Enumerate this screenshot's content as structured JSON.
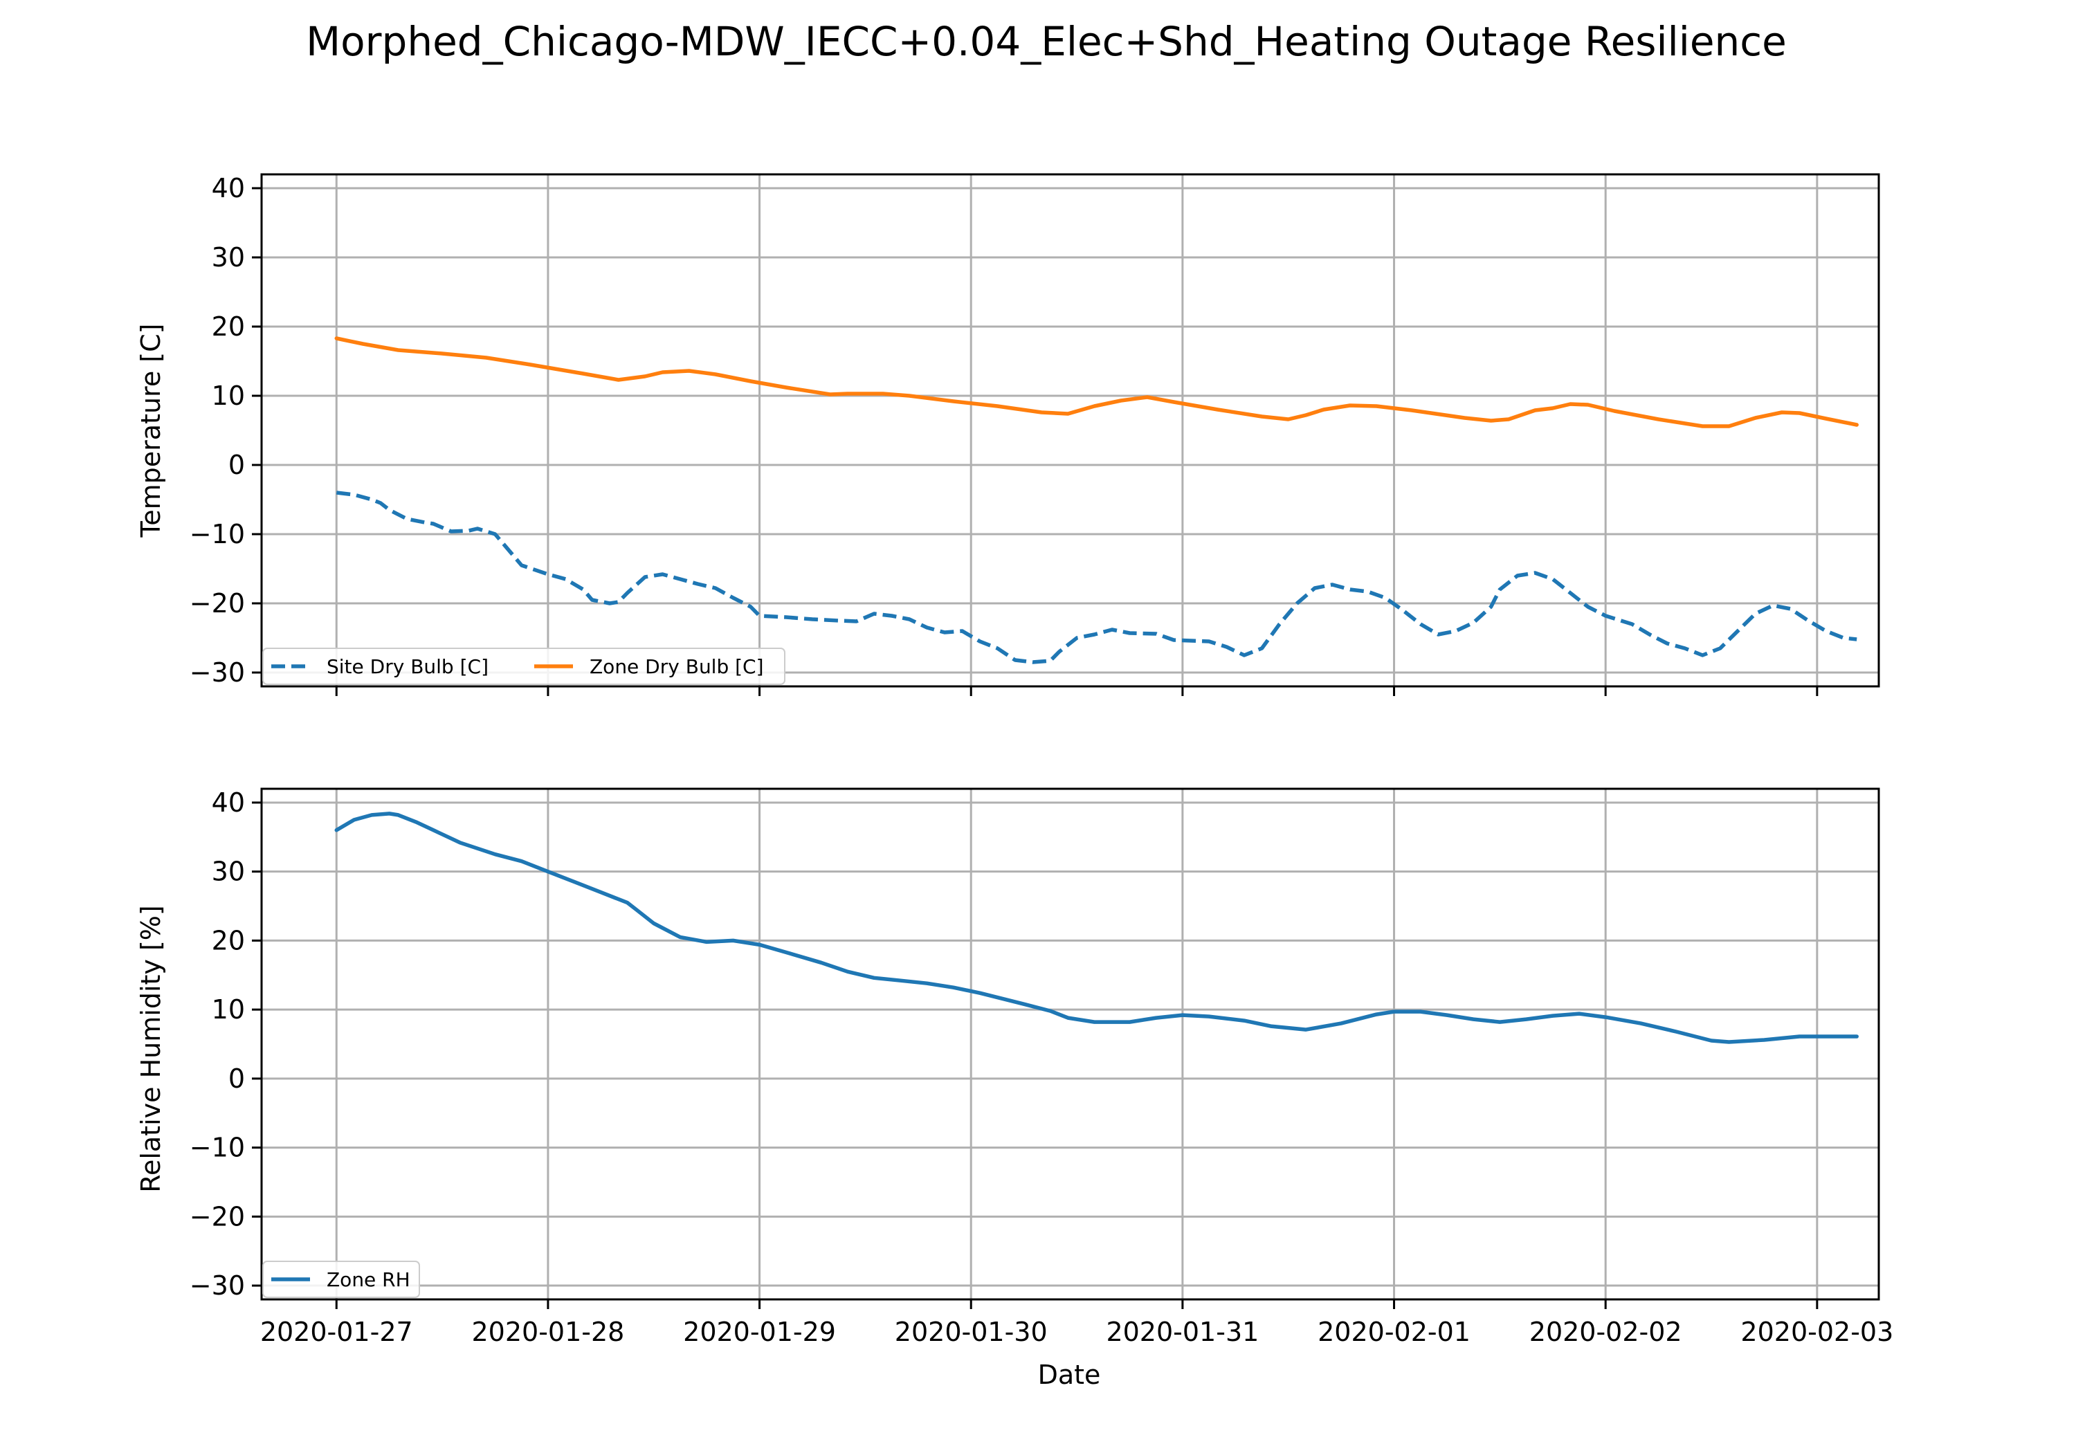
{
  "figure_title": "Morphed_Chicago-MDW_IECC+0.04_Elec+Shd_Heating Outage Resilience",
  "chart_data": [
    {
      "type": "line",
      "title": "",
      "xlabel": "",
      "ylabel": "Temperature [C]",
      "ylim": [
        -32,
        42
      ],
      "yticks": [
        -30,
        -20,
        -10,
        0,
        10,
        20,
        30,
        40
      ],
      "xlim": [
        "2020-01-26 15:30",
        "2020-02-03 07:00"
      ],
      "xticks": [
        "2020-01-27",
        "2020-01-28",
        "2020-01-29",
        "2020-01-30",
        "2020-01-31",
        "2020-02-01",
        "2020-02-02",
        "2020-02-03"
      ],
      "show_xtick_labels": false,
      "grid": true,
      "legend_position": "bottom-left",
      "legend_ncol": 2,
      "series": [
        {
          "name": "Site Dry Bulb [C]",
          "color": "#1f77b4",
          "style": "dashed",
          "points": [
            [
              "2020-01-27 00:00",
              -4
            ],
            [
              "2020-01-27 02:00",
              -4.3
            ],
            [
              "2020-01-27 04:00",
              -5
            ],
            [
              "2020-01-27 05:00",
              -5.5
            ],
            [
              "2020-01-27 06:00",
              -6.5
            ],
            [
              "2020-01-27 08:00",
              -7.8
            ],
            [
              "2020-01-27 10:00",
              -8.3
            ],
            [
              "2020-01-27 11:00",
              -8.5
            ],
            [
              "2020-01-27 13:00",
              -9.6
            ],
            [
              "2020-01-27 15:00",
              -9.5
            ],
            [
              "2020-01-27 16:00",
              -9.2
            ],
            [
              "2020-01-27 18:00",
              -10
            ],
            [
              "2020-01-27 20:00",
              -13
            ],
            [
              "2020-01-27 21:00",
              -14.5
            ],
            [
              "2020-01-28 00:00",
              -15.8
            ],
            [
              "2020-01-28 02:00",
              -16.5
            ],
            [
              "2020-01-28 04:00",
              -18
            ],
            [
              "2020-01-28 05:00",
              -19.5
            ],
            [
              "2020-01-28 07:00",
              -20
            ],
            [
              "2020-01-28 08:00",
              -19.8
            ],
            [
              "2020-01-28 09:00",
              -18.5
            ],
            [
              "2020-01-28 11:00",
              -16.2
            ],
            [
              "2020-01-28 13:00",
              -15.8
            ],
            [
              "2020-01-28 15:00",
              -16.5
            ],
            [
              "2020-01-28 17:00",
              -17.2
            ],
            [
              "2020-01-28 19:00",
              -17.8
            ],
            [
              "2020-01-28 21:00",
              -19.2
            ],
            [
              "2020-01-28 23:00",
              -20.5
            ],
            [
              "2020-01-29 00:00",
              -21.8
            ],
            [
              "2020-01-29 03:00",
              -22
            ],
            [
              "2020-01-29 06:00",
              -22.3
            ],
            [
              "2020-01-29 09:00",
              -22.5
            ],
            [
              "2020-01-29 11:00",
              -22.6
            ],
            [
              "2020-01-29 13:00",
              -21.5
            ],
            [
              "2020-01-29 15:00",
              -21.8
            ],
            [
              "2020-01-29 17:00",
              -22.3
            ],
            [
              "2020-01-29 19:00",
              -23.5
            ],
            [
              "2020-01-29 21:00",
              -24.2
            ],
            [
              "2020-01-29 23:00",
              -24
            ],
            [
              "2020-01-30 01:00",
              -25.5
            ],
            [
              "2020-01-30 03:00",
              -26.5
            ],
            [
              "2020-01-30 05:00",
              -28.2
            ],
            [
              "2020-01-30 07:00",
              -28.5
            ],
            [
              "2020-01-30 09:00",
              -28.3
            ],
            [
              "2020-01-30 10:00",
              -27
            ],
            [
              "2020-01-30 12:00",
              -25
            ],
            [
              "2020-01-30 14:00",
              -24.5
            ],
            [
              "2020-01-30 16:00",
              -23.8
            ],
            [
              "2020-01-30 18:00",
              -24.3
            ],
            [
              "2020-01-30 21:00",
              -24.4
            ],
            [
              "2020-01-30 23:00",
              -25.3
            ],
            [
              "2020-01-31 03:00",
              -25.5
            ],
            [
              "2020-01-31 05:00",
              -26.3
            ],
            [
              "2020-01-31 07:00",
              -27.5
            ],
            [
              "2020-01-31 09:00",
              -26.5
            ],
            [
              "2020-01-31 11:00",
              -23
            ],
            [
              "2020-01-31 13:00",
              -20
            ],
            [
              "2020-01-31 15:00",
              -17.8
            ],
            [
              "2020-01-31 17:00",
              -17.3
            ],
            [
              "2020-01-31 19:00",
              -18
            ],
            [
              "2020-01-31 21:00",
              -18.3
            ],
            [
              "2020-01-31 23:00",
              -19.2
            ],
            [
              "2020-02-01 01:00",
              -21
            ],
            [
              "2020-02-01 03:00",
              -23
            ],
            [
              "2020-02-01 05:00",
              -24.5
            ],
            [
              "2020-02-01 07:00",
              -24
            ],
            [
              "2020-02-01 09:00",
              -22.8
            ],
            [
              "2020-02-01 11:00",
              -20.5
            ],
            [
              "2020-02-01 12:00",
              -18
            ],
            [
              "2020-02-01 14:00",
              -16
            ],
            [
              "2020-02-01 16:00",
              -15.6
            ],
            [
              "2020-02-01 18:00",
              -16.5
            ],
            [
              "2020-02-01 20:00",
              -18.5
            ],
            [
              "2020-02-01 22:00",
              -20.5
            ],
            [
              "2020-02-02 00:00",
              -21.8
            ],
            [
              "2020-02-02 03:00",
              -23
            ],
            [
              "2020-02-02 05:00",
              -24.5
            ],
            [
              "2020-02-02 07:00",
              -25.8
            ],
            [
              "2020-02-02 09:00",
              -26.5
            ],
            [
              "2020-02-02 11:00",
              -27.5
            ],
            [
              "2020-02-02 13:00",
              -26.5
            ],
            [
              "2020-02-02 15:00",
              -24
            ],
            [
              "2020-02-02 17:00",
              -21.5
            ],
            [
              "2020-02-02 19:00",
              -20.3
            ],
            [
              "2020-02-02 21:00",
              -20.8
            ],
            [
              "2020-02-02 23:00",
              -22.5
            ],
            [
              "2020-02-03 01:00",
              -24
            ],
            [
              "2020-02-03 03:00",
              -25
            ],
            [
              "2020-02-03 04:30",
              -25.2
            ]
          ]
        },
        {
          "name": "Zone Dry Bulb [C]",
          "color": "#ff7f0e",
          "style": "solid",
          "points": [
            [
              "2020-01-27 00:00",
              18.3
            ],
            [
              "2020-01-27 03:00",
              17.5
            ],
            [
              "2020-01-27 07:00",
              16.6
            ],
            [
              "2020-01-27 12:00",
              16.1
            ],
            [
              "2020-01-27 17:00",
              15.5
            ],
            [
              "2020-01-27 22:00",
              14.5
            ],
            [
              "2020-01-28 04:00",
              13.2
            ],
            [
              "2020-01-28 08:00",
              12.3
            ],
            [
              "2020-01-28 11:00",
              12.8
            ],
            [
              "2020-01-28 13:00",
              13.4
            ],
            [
              "2020-01-28 16:00",
              13.6
            ],
            [
              "2020-01-28 19:00",
              13.1
            ],
            [
              "2020-01-28 23:00",
              12.1
            ],
            [
              "2020-01-29 03:00",
              11.2
            ],
            [
              "2020-01-29 08:00",
              10.2
            ],
            [
              "2020-01-29 10:00",
              10.3
            ],
            [
              "2020-01-29 14:00",
              10.3
            ],
            [
              "2020-01-29 17:00",
              10
            ],
            [
              "2020-01-29 22:00",
              9.2
            ],
            [
              "2020-01-30 03:00",
              8.5
            ],
            [
              "2020-01-30 08:00",
              7.6
            ],
            [
              "2020-01-30 11:00",
              7.4
            ],
            [
              "2020-01-30 14:00",
              8.5
            ],
            [
              "2020-01-30 17:00",
              9.3
            ],
            [
              "2020-01-30 20:00",
              9.8
            ],
            [
              "2020-01-30 23:00",
              9.1
            ],
            [
              "2020-01-31 04:00",
              8
            ],
            [
              "2020-01-31 09:00",
              7
            ],
            [
              "2020-01-31 12:00",
              6.6
            ],
            [
              "2020-01-31 14:00",
              7.2
            ],
            [
              "2020-01-31 16:00",
              8
            ],
            [
              "2020-01-31 19:00",
              8.6
            ],
            [
              "2020-01-31 22:00",
              8.5
            ],
            [
              "2020-02-01 02:00",
              7.9
            ],
            [
              "2020-02-01 08:00",
              6.8
            ],
            [
              "2020-02-01 11:00",
              6.4
            ],
            [
              "2020-02-01 13:00",
              6.6
            ],
            [
              "2020-02-01 16:00",
              7.9
            ],
            [
              "2020-02-01 18:00",
              8.2
            ],
            [
              "2020-02-01 20:00",
              8.8
            ],
            [
              "2020-02-01 22:00",
              8.7
            ],
            [
              "2020-02-02 01:00",
              7.8
            ],
            [
              "2020-02-02 06:00",
              6.6
            ],
            [
              "2020-02-02 11:00",
              5.6
            ],
            [
              "2020-02-02 14:00",
              5.6
            ],
            [
              "2020-02-02 17:00",
              6.8
            ],
            [
              "2020-02-02 20:00",
              7.6
            ],
            [
              "2020-02-02 22:00",
              7.5
            ],
            [
              "2020-02-03 01:00",
              6.7
            ],
            [
              "2020-02-03 04:30",
              5.8
            ]
          ]
        }
      ]
    },
    {
      "type": "line",
      "title": "",
      "xlabel": "Date",
      "ylabel": "Relative Humidity [%]",
      "ylim": [
        -32,
        42
      ],
      "yticks": [
        -30,
        -20,
        -10,
        0,
        10,
        20,
        30,
        40
      ],
      "xlim": [
        "2020-01-26 15:30",
        "2020-02-03 07:00"
      ],
      "xticks": [
        "2020-01-27",
        "2020-01-28",
        "2020-01-29",
        "2020-01-30",
        "2020-01-31",
        "2020-02-01",
        "2020-02-02",
        "2020-02-03"
      ],
      "show_xtick_labels": true,
      "grid": true,
      "legend_position": "bottom-left",
      "legend_ncol": 1,
      "series": [
        {
          "name": "Zone RH",
          "color": "#1f77b4",
          "style": "solid",
          "points": [
            [
              "2020-01-27 00:00",
              36
            ],
            [
              "2020-01-27 02:00",
              37.5
            ],
            [
              "2020-01-27 04:00",
              38.2
            ],
            [
              "2020-01-27 06:00",
              38.4
            ],
            [
              "2020-01-27 07:00",
              38.2
            ],
            [
              "2020-01-27 09:00",
              37.2
            ],
            [
              "2020-01-27 11:00",
              36
            ],
            [
              "2020-01-27 14:00",
              34.2
            ],
            [
              "2020-01-27 18:00",
              32.5
            ],
            [
              "2020-01-27 21:00",
              31.5
            ],
            [
              "2020-01-28 00:00",
              30
            ],
            [
              "2020-01-28 03:00",
              28.5
            ],
            [
              "2020-01-28 06:00",
              27
            ],
            [
              "2020-01-28 09:00",
              25.5
            ],
            [
              "2020-01-28 10:00",
              24.5
            ],
            [
              "2020-01-28 12:00",
              22.5
            ],
            [
              "2020-01-28 15:00",
              20.5
            ],
            [
              "2020-01-28 18:00",
              19.8
            ],
            [
              "2020-01-28 21:00",
              20
            ],
            [
              "2020-01-29 00:00",
              19.4
            ],
            [
              "2020-01-29 03:00",
              18.3
            ],
            [
              "2020-01-29 07:00",
              16.8
            ],
            [
              "2020-01-29 10:00",
              15.5
            ],
            [
              "2020-01-29 13:00",
              14.6
            ],
            [
              "2020-01-29 16:00",
              14.2
            ],
            [
              "2020-01-29 19:00",
              13.8
            ],
            [
              "2020-01-29 22:00",
              13.2
            ],
            [
              "2020-01-30 01:00",
              12.4
            ],
            [
              "2020-01-30 06:00",
              10.8
            ],
            [
              "2020-01-30 09:00",
              9.8
            ],
            [
              "2020-01-30 11:00",
              8.8
            ],
            [
              "2020-01-30 14:00",
              8.2
            ],
            [
              "2020-01-30 18:00",
              8.2
            ],
            [
              "2020-01-30 21:00",
              8.8
            ],
            [
              "2020-01-31 00:00",
              9.2
            ],
            [
              "2020-01-31 03:00",
              9
            ],
            [
              "2020-01-31 07:00",
              8.4
            ],
            [
              "2020-01-31 10:00",
              7.6
            ],
            [
              "2020-01-31 14:00",
              7.1
            ],
            [
              "2020-01-31 18:00",
              8
            ],
            [
              "2020-01-31 22:00",
              9.3
            ],
            [
              "2020-02-01 00:00",
              9.7
            ],
            [
              "2020-02-01 03:00",
              9.7
            ],
            [
              "2020-02-01 06:00",
              9.2
            ],
            [
              "2020-02-01 09:00",
              8.6
            ],
            [
              "2020-02-01 12:00",
              8.2
            ],
            [
              "2020-02-01 15:00",
              8.6
            ],
            [
              "2020-02-01 18:00",
              9.1
            ],
            [
              "2020-02-01 21:00",
              9.4
            ],
            [
              "2020-02-02 00:00",
              8.9
            ],
            [
              "2020-02-02 04:00",
              8
            ],
            [
              "2020-02-02 08:00",
              6.8
            ],
            [
              "2020-02-02 12:00",
              5.5
            ],
            [
              "2020-02-02 14:00",
              5.3
            ],
            [
              "2020-02-02 18:00",
              5.6
            ],
            [
              "2020-02-02 22:00",
              6.1
            ],
            [
              "2020-02-03 04:30",
              6.1
            ]
          ]
        }
      ]
    }
  ]
}
